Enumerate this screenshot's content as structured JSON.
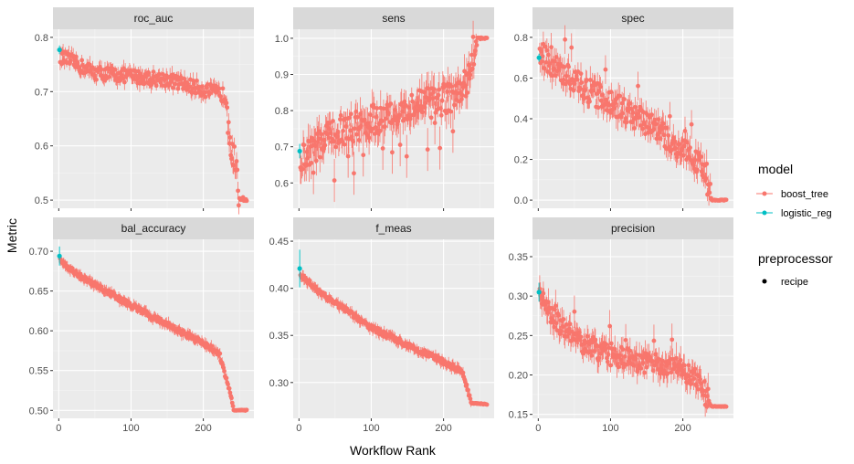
{
  "chart_data": {
    "type": "scatter",
    "xlabel": "Workflow Rank",
    "ylabel": "Metric",
    "series_colors": {
      "boost_tree": "#F8766D",
      "logistic_reg": "#00BFC4"
    },
    "legend": {
      "placement": "right",
      "model_title": "model",
      "model_items": [
        "boost_tree",
        "logistic_reg"
      ],
      "preprocessor_title": "preprocessor",
      "preprocessor_items": [
        "recipe"
      ]
    },
    "xlim": [
      -8,
      270
    ],
    "xticks": [
      0,
      100,
      200
    ],
    "n_workflows": 260,
    "grid": true,
    "panels": [
      {
        "metric": "roc_auc",
        "ylim": [
          0.485,
          0.815
        ],
        "yticks": [
          "0.5",
          "0.6",
          "0.7",
          "0.8"
        ],
        "ytick_values": [
          0.5,
          0.6,
          0.7,
          0.8
        ],
        "shape": "roc",
        "logistic_reg": {
          "rank": 1,
          "mean": 0.777,
          "err": 0.008
        },
        "boost_tree_profile": [
          [
            2,
            0.765
          ],
          [
            50,
            0.735
          ],
          [
            150,
            0.722
          ],
          [
            225,
            0.695
          ],
          [
            232,
            0.69
          ],
          [
            236,
            0.64
          ],
          [
            244,
            0.56
          ],
          [
            248,
            0.505
          ],
          [
            260,
            0.5
          ]
        ]
      },
      {
        "metric": "sens",
        "ylim": [
          0.53,
          1.025
        ],
        "yticks": [
          "0.6",
          "0.7",
          "0.8",
          "0.9",
          "1.0"
        ],
        "ytick_values": [
          0.6,
          0.7,
          0.8,
          0.9,
          1.0
        ],
        "shape": "sens",
        "logistic_reg": {
          "rank": 1,
          "mean": 0.688,
          "err": 0.02
        },
        "boost_tree_profile": [
          [
            2,
            0.66
          ],
          [
            50,
            0.74
          ],
          [
            150,
            0.8
          ],
          [
            225,
            0.85
          ],
          [
            235,
            0.9
          ],
          [
            245,
            1.0
          ],
          [
            260,
            1.0
          ]
        ]
      },
      {
        "metric": "spec",
        "ylim": [
          -0.04,
          0.84
        ],
        "yticks": [
          "0.0",
          "0.2",
          "0.4",
          "0.6",
          "0.8"
        ],
        "ytick_values": [
          0.0,
          0.2,
          0.4,
          0.6,
          0.8
        ],
        "shape": "spec",
        "logistic_reg": {
          "rank": 1,
          "mean": 0.7,
          "err": 0.02
        },
        "boost_tree_profile": [
          [
            2,
            0.72
          ],
          [
            50,
            0.58
          ],
          [
            150,
            0.38
          ],
          [
            225,
            0.18
          ],
          [
            232,
            0.08
          ],
          [
            240,
            0.0
          ],
          [
            260,
            0.0
          ]
        ]
      },
      {
        "metric": "bal_accuracy",
        "ylim": [
          0.49,
          0.715
        ],
        "yticks": [
          "0.50",
          "0.55",
          "0.60",
          "0.65",
          "0.70"
        ],
        "ytick_values": [
          0.5,
          0.55,
          0.6,
          0.65,
          0.7
        ],
        "shape": "smooth",
        "logistic_reg": {
          "rank": 1,
          "mean": 0.694,
          "err": 0.012
        },
        "boost_tree_profile": [
          [
            2,
            0.688
          ],
          [
            30,
            0.668
          ],
          [
            100,
            0.632
          ],
          [
            200,
            0.584
          ],
          [
            222,
            0.572
          ],
          [
            230,
            0.545
          ],
          [
            238,
            0.52
          ],
          [
            242,
            0.5
          ],
          [
            260,
            0.5
          ]
        ]
      },
      {
        "metric": "f_meas",
        "ylim": [
          0.262,
          0.452
        ],
        "yticks": [
          "0.30",
          "0.35",
          "0.40",
          "0.45"
        ],
        "ytick_values": [
          0.3,
          0.35,
          0.4,
          0.45
        ],
        "shape": "smooth",
        "logistic_reg": {
          "rank": 1,
          "mean": 0.421,
          "err": 0.02
        },
        "boost_tree_profile": [
          [
            2,
            0.415
          ],
          [
            30,
            0.395
          ],
          [
            100,
            0.358
          ],
          [
            200,
            0.322
          ],
          [
            225,
            0.312
          ],
          [
            233,
            0.295
          ],
          [
            238,
            0.278
          ],
          [
            260,
            0.277
          ]
        ]
      },
      {
        "metric": "precision",
        "ylim": [
          0.145,
          0.372
        ],
        "yticks": [
          "0.15",
          "0.20",
          "0.25",
          "0.30",
          "0.35"
        ],
        "ytick_values": [
          0.15,
          0.2,
          0.25,
          0.3,
          0.35
        ],
        "shape": "precision",
        "logistic_reg": {
          "rank": 1,
          "mean": 0.305,
          "err": 0.012
        },
        "boost_tree_profile": [
          [
            2,
            0.3
          ],
          [
            20,
            0.275
          ],
          [
            50,
            0.245
          ],
          [
            100,
            0.225
          ],
          [
            200,
            0.205
          ],
          [
            228,
            0.19
          ],
          [
            232,
            0.17
          ],
          [
            240,
            0.16
          ],
          [
            260,
            0.16
          ]
        ]
      }
    ]
  }
}
